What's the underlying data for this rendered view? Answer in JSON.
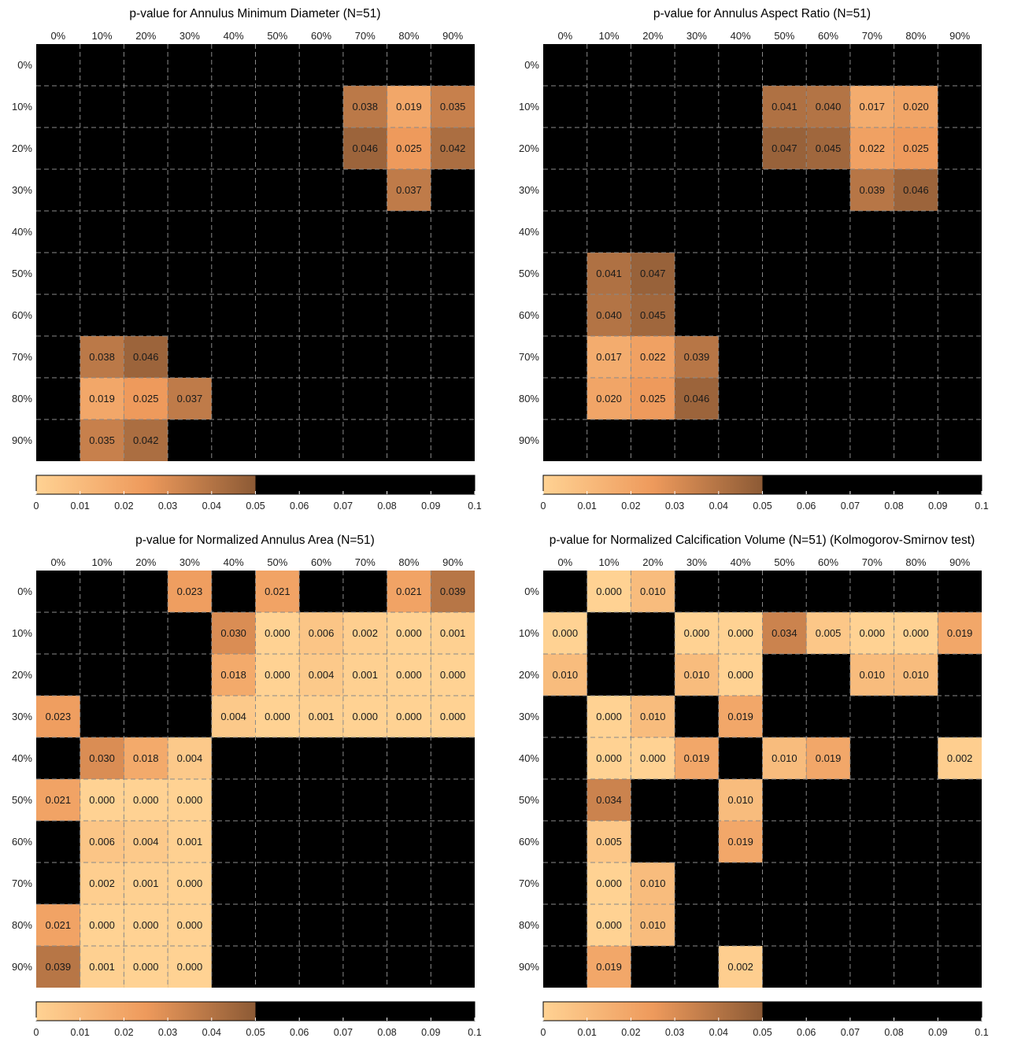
{
  "chart_data": [
    {
      "type": "heatmap",
      "title": "p-value for Annulus Minimum Diameter (N=51)",
      "columns": [
        "0%",
        "10%",
        "20%",
        "30%",
        "40%",
        "50%",
        "60%",
        "70%",
        "80%",
        "90%"
      ],
      "rows": [
        "0%",
        "10%",
        "20%",
        "30%",
        "40%",
        "50%",
        "60%",
        "70%",
        "80%",
        "90%"
      ],
      "values": [
        [
          null,
          null,
          null,
          null,
          null,
          null,
          null,
          null,
          null,
          null
        ],
        [
          null,
          null,
          null,
          null,
          null,
          null,
          null,
          0.038,
          0.019,
          0.035
        ],
        [
          null,
          null,
          null,
          null,
          null,
          null,
          null,
          0.046,
          0.025,
          0.042
        ],
        [
          null,
          null,
          null,
          null,
          null,
          null,
          null,
          null,
          0.037,
          null
        ],
        [
          null,
          null,
          null,
          null,
          null,
          null,
          null,
          null,
          null,
          null
        ],
        [
          null,
          null,
          null,
          null,
          null,
          null,
          null,
          null,
          null,
          null
        ],
        [
          null,
          null,
          null,
          null,
          null,
          null,
          null,
          null,
          null,
          null
        ],
        [
          null,
          0.038,
          0.046,
          null,
          null,
          null,
          null,
          null,
          null,
          null
        ],
        [
          null,
          0.019,
          0.025,
          0.037,
          null,
          null,
          null,
          null,
          null,
          null
        ],
        [
          null,
          0.035,
          0.042,
          null,
          null,
          null,
          null,
          null,
          null,
          null
        ]
      ],
      "colorbar": {
        "ticks": [
          "0",
          "0.01",
          "0.02",
          "0.03",
          "0.04",
          "0.05",
          "0.06",
          "0.07",
          "0.08",
          "0.09",
          "0.1"
        ],
        "range": [
          0,
          0.1
        ],
        "threshold": 0.05
      }
    },
    {
      "type": "heatmap",
      "title": "p-value for Annulus Aspect Ratio (N=51)",
      "columns": [
        "0%",
        "10%",
        "20%",
        "30%",
        "40%",
        "50%",
        "60%",
        "70%",
        "80%",
        "90%"
      ],
      "rows": [
        "0%",
        "10%",
        "20%",
        "30%",
        "40%",
        "50%",
        "60%",
        "70%",
        "80%",
        "90%"
      ],
      "values": [
        [
          null,
          null,
          null,
          null,
          null,
          null,
          null,
          null,
          null,
          null
        ],
        [
          null,
          null,
          null,
          null,
          null,
          0.041,
          0.04,
          0.017,
          0.02,
          null
        ],
        [
          null,
          null,
          null,
          null,
          null,
          0.047,
          0.045,
          0.022,
          0.025,
          null
        ],
        [
          null,
          null,
          null,
          null,
          null,
          null,
          null,
          0.039,
          0.046,
          null
        ],
        [
          null,
          null,
          null,
          null,
          null,
          null,
          null,
          null,
          null,
          null
        ],
        [
          null,
          0.041,
          0.047,
          null,
          null,
          null,
          null,
          null,
          null,
          null
        ],
        [
          null,
          0.04,
          0.045,
          null,
          null,
          null,
          null,
          null,
          null,
          null
        ],
        [
          null,
          0.017,
          0.022,
          0.039,
          null,
          null,
          null,
          null,
          null,
          null
        ],
        [
          null,
          0.02,
          0.025,
          0.046,
          null,
          null,
          null,
          null,
          null,
          null
        ],
        [
          null,
          null,
          null,
          null,
          null,
          null,
          null,
          null,
          null,
          null
        ]
      ],
      "colorbar": {
        "ticks": [
          "0",
          "0.01",
          "0.02",
          "0.03",
          "0.04",
          "0.05",
          "0.06",
          "0.07",
          "0.08",
          "0.09",
          "0.1"
        ],
        "range": [
          0,
          0.1
        ],
        "threshold": 0.05
      }
    },
    {
      "type": "heatmap",
      "title": "p-value for Normalized Annulus Area (N=51)",
      "columns": [
        "0%",
        "10%",
        "20%",
        "30%",
        "40%",
        "50%",
        "60%",
        "70%",
        "80%",
        "90%"
      ],
      "rows": [
        "0%",
        "10%",
        "20%",
        "30%",
        "40%",
        "50%",
        "60%",
        "70%",
        "80%",
        "90%"
      ],
      "values": [
        [
          null,
          null,
          null,
          0.023,
          null,
          0.021,
          null,
          null,
          0.021,
          0.039
        ],
        [
          null,
          null,
          null,
          null,
          0.03,
          0.0,
          0.006,
          0.002,
          0.0,
          0.001
        ],
        [
          null,
          null,
          null,
          null,
          0.018,
          0.0,
          0.004,
          0.001,
          0.0,
          0.0
        ],
        [
          0.023,
          null,
          null,
          null,
          0.004,
          0.0,
          0.001,
          0.0,
          0.0,
          0.0
        ],
        [
          null,
          0.03,
          0.018,
          0.004,
          null,
          null,
          null,
          null,
          null,
          null
        ],
        [
          0.021,
          0.0,
          0.0,
          0.0,
          null,
          null,
          null,
          null,
          null,
          null
        ],
        [
          null,
          0.006,
          0.004,
          0.001,
          null,
          null,
          null,
          null,
          null,
          null
        ],
        [
          null,
          0.002,
          0.001,
          0.0,
          null,
          null,
          null,
          null,
          null,
          null
        ],
        [
          0.021,
          0.0,
          0.0,
          0.0,
          null,
          null,
          null,
          null,
          null,
          null
        ],
        [
          0.039,
          0.001,
          0.0,
          0.0,
          null,
          null,
          null,
          null,
          null,
          null
        ]
      ],
      "colorbar": {
        "ticks": [
          "0",
          "0.01",
          "0.02",
          "0.03",
          "0.04",
          "0.05",
          "0.06",
          "0.07",
          "0.08",
          "0.09",
          "0.1"
        ],
        "range": [
          0,
          0.1
        ],
        "threshold": 0.05
      }
    },
    {
      "type": "heatmap",
      "title": "p-value for Normalized Calcification Volume (N=51) (Kolmogorov-Smirnov test)",
      "columns": [
        "0%",
        "10%",
        "20%",
        "30%",
        "40%",
        "50%",
        "60%",
        "70%",
        "80%",
        "90%"
      ],
      "rows": [
        "0%",
        "10%",
        "20%",
        "30%",
        "40%",
        "50%",
        "60%",
        "70%",
        "80%",
        "90%"
      ],
      "values": [
        [
          null,
          0.0,
          0.01,
          null,
          null,
          null,
          null,
          null,
          null,
          null
        ],
        [
          0.0,
          null,
          null,
          0.0,
          0.0,
          0.034,
          0.005,
          0.0,
          0.0,
          0.019
        ],
        [
          0.01,
          null,
          null,
          0.01,
          0.0,
          null,
          null,
          0.01,
          0.01,
          null
        ],
        [
          null,
          0.0,
          0.01,
          null,
          0.019,
          null,
          null,
          null,
          null,
          null
        ],
        [
          null,
          0.0,
          0.0,
          0.019,
          null,
          0.01,
          0.019,
          null,
          null,
          0.002
        ],
        [
          null,
          0.034,
          null,
          null,
          0.01,
          null,
          null,
          null,
          null,
          null
        ],
        [
          null,
          0.005,
          null,
          null,
          0.019,
          null,
          null,
          null,
          null,
          null
        ],
        [
          null,
          0.0,
          0.01,
          null,
          null,
          null,
          null,
          null,
          null,
          null
        ],
        [
          null,
          0.0,
          0.01,
          null,
          null,
          null,
          null,
          null,
          null,
          null
        ],
        [
          null,
          0.019,
          null,
          null,
          0.002,
          null,
          null,
          null,
          null,
          null
        ]
      ],
      "colorbar": {
        "ticks": [
          "0",
          "0.01",
          "0.02",
          "0.03",
          "0.04",
          "0.05",
          "0.06",
          "0.07",
          "0.08",
          "0.09",
          "0.1"
        ],
        "range": [
          0,
          0.1
        ],
        "threshold": 0.05
      }
    }
  ],
  "colors": {
    "background": "#000000",
    "grid": "#8a8a8a",
    "scale_low": "#FFD293",
    "scale_mid": "#EE9A5C",
    "scale_high": "#8C5A35"
  }
}
